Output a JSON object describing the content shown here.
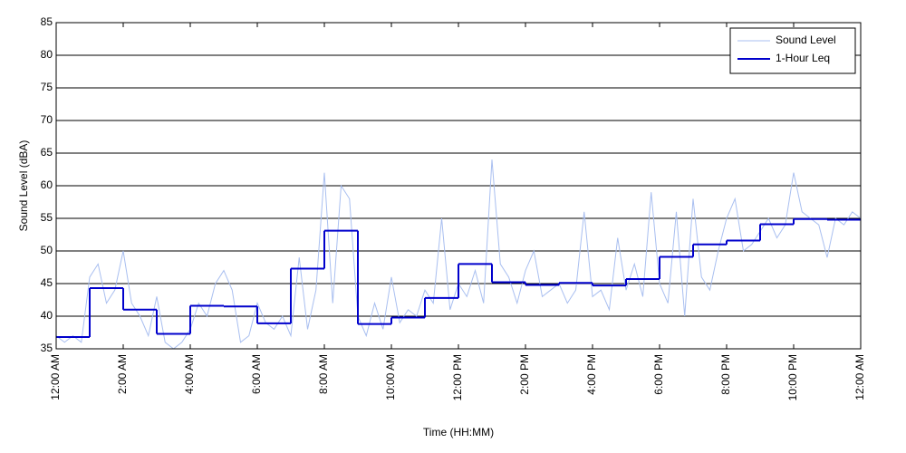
{
  "chart_data": {
    "type": "line",
    "xlabel": "Time (HH:MM)",
    "ylabel": "Sound Level (dBA)",
    "xlim": [
      0,
      24
    ],
    "xticks": [
      {
        "value": 0,
        "label": "12:00 AM"
      },
      {
        "value": 2,
        "label": "2:00 AM"
      },
      {
        "value": 4,
        "label": "4:00 AM"
      },
      {
        "value": 6,
        "label": "6:00 AM"
      },
      {
        "value": 8,
        "label": "8:00 AM"
      },
      {
        "value": 10,
        "label": "10:00 AM"
      },
      {
        "value": 12,
        "label": "12:00 PM"
      },
      {
        "value": 14,
        "label": "2:00 PM"
      },
      {
        "value": 16,
        "label": "4:00 PM"
      },
      {
        "value": 18,
        "label": "6:00 PM"
      },
      {
        "value": 20,
        "label": "8:00 PM"
      },
      {
        "value": 22,
        "label": "10:00 PM"
      },
      {
        "value": 24,
        "label": "12:00 AM"
      }
    ],
    "ylim": [
      35,
      85
    ],
    "yticks": [
      35,
      40,
      45,
      50,
      55,
      60,
      65,
      70,
      75,
      80,
      85
    ],
    "grid": true,
    "legend": "upper right",
    "series": [
      {
        "name": "Sound Level",
        "color": "#a9bff0",
        "style": "line",
        "x": [
          0,
          0.25,
          0.5,
          0.75,
          1,
          1.25,
          1.5,
          1.75,
          2,
          2.25,
          2.5,
          2.75,
          3,
          3.25,
          3.5,
          3.75,
          4,
          4.25,
          4.5,
          4.75,
          5,
          5.25,
          5.5,
          5.75,
          6,
          6.25,
          6.5,
          6.75,
          7,
          7.25,
          7.5,
          7.75,
          8,
          8.25,
          8.5,
          8.75,
          9,
          9.25,
          9.5,
          9.75,
          10,
          10.25,
          10.5,
          10.75,
          11,
          11.25,
          11.5,
          11.75,
          12,
          12.25,
          12.5,
          12.75,
          13,
          13.25,
          13.5,
          13.75,
          14,
          14.25,
          14.5,
          14.75,
          15,
          15.25,
          15.5,
          15.75,
          16,
          16.25,
          16.5,
          16.75,
          17,
          17.25,
          17.5,
          17.75,
          18,
          18.25,
          18.5,
          18.75,
          19,
          19.25,
          19.5,
          19.75,
          20,
          20.25,
          20.5,
          20.75,
          21,
          21.25,
          21.5,
          21.75,
          22,
          22.25,
          22.5,
          22.75,
          23,
          23.25,
          23.5,
          23.75,
          24
        ],
        "values": [
          37,
          36,
          37,
          36,
          46,
          48,
          42,
          44,
          50,
          42,
          40,
          37,
          43,
          36,
          35,
          36,
          38,
          42,
          40,
          45,
          47,
          44,
          36,
          37,
          42,
          39,
          38,
          40,
          37,
          49,
          38,
          44,
          62,
          42,
          60,
          58,
          40,
          37,
          42,
          38,
          46,
          39,
          41,
          40,
          44,
          42,
          55,
          41,
          45,
          43,
          47,
          42,
          64,
          48,
          46,
          42,
          47,
          50,
          43,
          44,
          45,
          42,
          44,
          56,
          43,
          44,
          41,
          52,
          44,
          48,
          43,
          59,
          45,
          42,
          56,
          40,
          58,
          46,
          44,
          50,
          55,
          58,
          50,
          51,
          53,
          55,
          52,
          54,
          62,
          56,
          55,
          54,
          49,
          55,
          54,
          56,
          55
        ]
      },
      {
        "name": "1-Hour Leq",
        "color": "#0000cc",
        "style": "step",
        "x": [
          0,
          1,
          2,
          3,
          4,
          5,
          6,
          7,
          8,
          9,
          10,
          11,
          12,
          13,
          14,
          15,
          16,
          17,
          18,
          19,
          20,
          21,
          22,
          23
        ],
        "values": [
          36.8,
          44.3,
          41.0,
          37.3,
          41.6,
          41.5,
          38.9,
          47.3,
          53.1,
          38.8,
          39.8,
          42.8,
          48.0,
          45.2,
          44.8,
          45.1,
          44.7,
          45.7,
          49.1,
          51.0,
          51.6,
          54.1,
          54.9,
          54.8
        ]
      }
    ]
  }
}
